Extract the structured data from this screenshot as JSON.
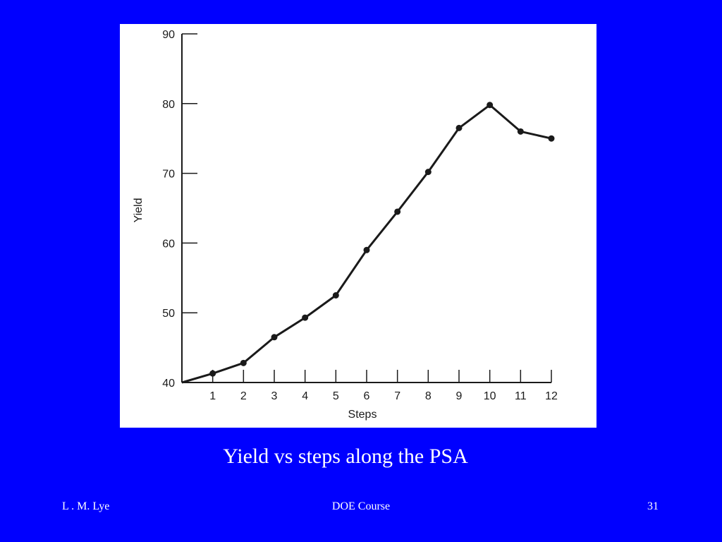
{
  "slide": {
    "caption": "Yield vs steps along the PSA",
    "footer_left": "L . M. Lye",
    "footer_center": "DOE Course",
    "footer_right": "31"
  },
  "colors": {
    "background": "#0000ff",
    "panel": "#ffffff",
    "ink": "#1a1a1a"
  },
  "chart_data": {
    "type": "line",
    "title": "",
    "xlabel": "Steps",
    "ylabel": "Yield",
    "xlim": [
      0,
      12
    ],
    "ylim": [
      40,
      90
    ],
    "x_ticks": [
      "1",
      "2",
      "3",
      "4",
      "5",
      "6",
      "7",
      "8",
      "9",
      "10",
      "11",
      "12"
    ],
    "y_ticks": [
      "40",
      "50",
      "60",
      "70",
      "80",
      "90"
    ],
    "grid": false,
    "series": [
      {
        "x": [
          0,
          1,
          2,
          3,
          4,
          5,
          6,
          7,
          8,
          9,
          10,
          11,
          12
        ],
        "y": [
          40,
          41.3,
          42.8,
          46.5,
          49.3,
          52.5,
          59,
          64.5,
          70.2,
          76.5,
          79.8,
          76,
          75
        ]
      }
    ]
  }
}
